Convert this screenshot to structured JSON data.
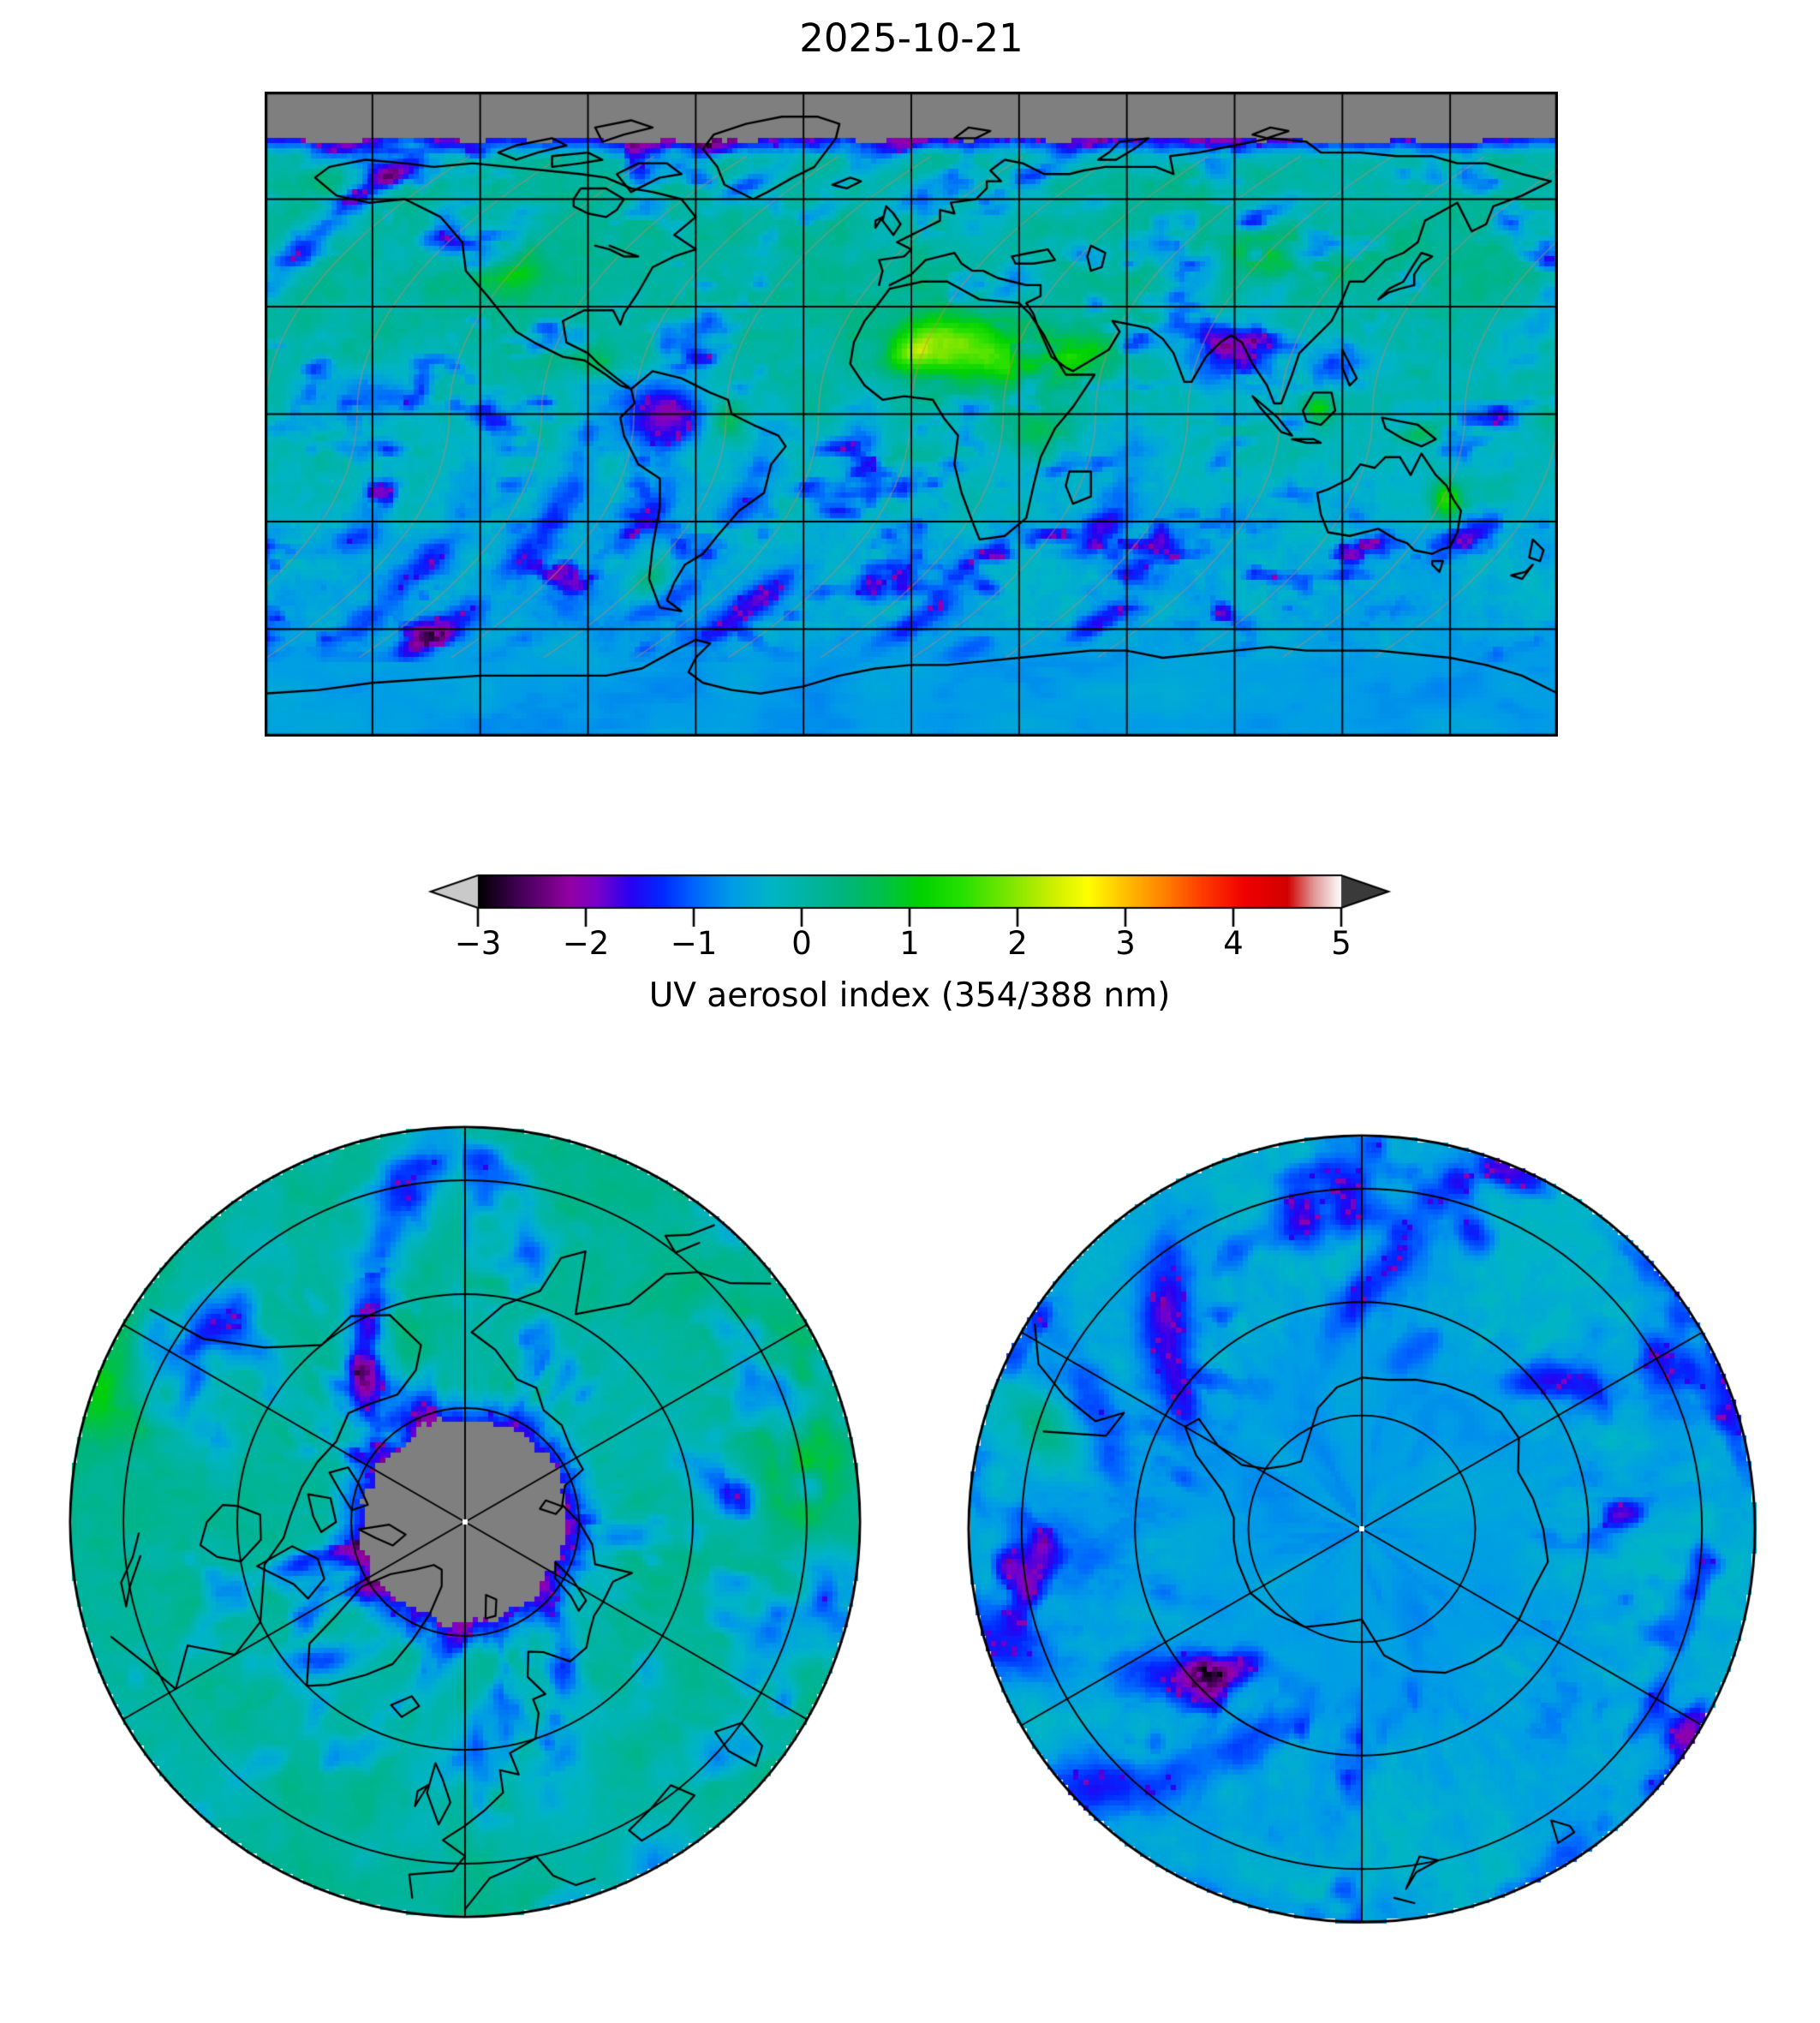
{
  "figure": {
    "title": "2025-10-21",
    "background_color": "#ffffff"
  },
  "colorbar": {
    "label": "UV aerosol index (354/388 nm)",
    "ticks": [
      "−3",
      "−2",
      "−1",
      "0",
      "1",
      "2",
      "3",
      "4",
      "5"
    ],
    "tick_values": [
      -3,
      -2,
      -1,
      0,
      1,
      2,
      3,
      4,
      5
    ],
    "value_range": [
      -3,
      5
    ],
    "under_arrow_color": "#c9c9c9",
    "over_arrow_color": "#3a3a3a",
    "outline_color": "#000000",
    "colormap_stops": [
      [
        -3.0,
        "#000000"
      ],
      [
        -2.6,
        "#46005a"
      ],
      [
        -2.15,
        "#9300a4"
      ],
      [
        -1.9,
        "#7a00c8"
      ],
      [
        -1.6,
        "#2a00f0"
      ],
      [
        -1.3,
        "#0028ff"
      ],
      [
        -1.0,
        "#0064ff"
      ],
      [
        -0.65,
        "#009ce6"
      ],
      [
        -0.3,
        "#00b4c8"
      ],
      [
        0.0,
        "#00b4a8"
      ],
      [
        0.35,
        "#00b482"
      ],
      [
        0.7,
        "#00be50"
      ],
      [
        1.1,
        "#00d200"
      ],
      [
        1.5,
        "#28e100"
      ],
      [
        1.9,
        "#78e600"
      ],
      [
        2.3,
        "#c8ee00"
      ],
      [
        2.65,
        "#ffff00"
      ],
      [
        3.0,
        "#ffbe00"
      ],
      [
        3.35,
        "#ff8200"
      ],
      [
        3.7,
        "#ff3c00"
      ],
      [
        4.1,
        "#f00000"
      ],
      [
        4.5,
        "#d20000"
      ],
      [
        4.75,
        "#e09a9a"
      ],
      [
        5.0,
        "#ffffff"
      ]
    ]
  },
  "chart_data": {
    "type": "heatmap",
    "title": "2025-10-21",
    "variable": "UV aerosol index (354/388 nm)",
    "value_range": [
      -3,
      5
    ],
    "no_data_color": "#7f7f7f",
    "coastline_color": "#000000",
    "gridline_color": "#000000",
    "panels": [
      {
        "name": "global",
        "projection": "equirectangular",
        "lon_range": [
          -180,
          180
        ],
        "lat_range": [
          -90,
          90
        ],
        "gridlines": {
          "lon_step_deg": 30,
          "lat_step_deg": 30
        },
        "no_data": "poleward of ~77°N (polar night, gray)"
      },
      {
        "name": "north-polar",
        "projection": "north polar stereographic",
        "lat_edge_deg": 38,
        "parallels_deg": [
          45,
          60,
          75
        ],
        "meridian_step_deg": 60,
        "no_data": "gray disk poleward of ~77°N"
      },
      {
        "name": "south-polar",
        "projection": "south polar stereographic",
        "lat_edge_deg": -38,
        "parallels_deg": [
          -45,
          -60,
          -75
        ],
        "meridian_step_deg": 60,
        "no_data": "none"
      }
    ],
    "features": [
      {
        "region": "background clear-sky oceans and land",
        "uv_aerosol_index": 0
      },
      {
        "region": "Sahara / Sahel dust plume (West and North Africa)",
        "uv_aerosol_index": 2
      },
      {
        "region": "Arabian Peninsula dust",
        "uv_aerosol_index": 1
      },
      {
        "region": "central Asia / NE China patch",
        "uv_aerosol_index": 0.8
      },
      {
        "region": "western North America patch",
        "uv_aerosol_index": 0.9
      },
      {
        "region": "Borneo and New Guinea hotspots",
        "uv_aerosol_index": 1
      },
      {
        "region": "eastern Australia plume",
        "uv_aerosol_index": 1.5
      },
      {
        "region": "cloudy satellite swath streaks over oceans",
        "uv_aerosol_index": -1.5
      },
      {
        "region": "deep cloud decks (NW South America, Bay of Bengal, SE Asia) with magenta specks",
        "uv_aerosol_index": -2
      },
      {
        "region": "Antarctic coastal band (smooth light blue)",
        "uv_aerosol_index": -0.7
      },
      {
        "region": "Arctic poleward of ~77°N",
        "uv_aerosol_index": null
      }
    ]
  }
}
